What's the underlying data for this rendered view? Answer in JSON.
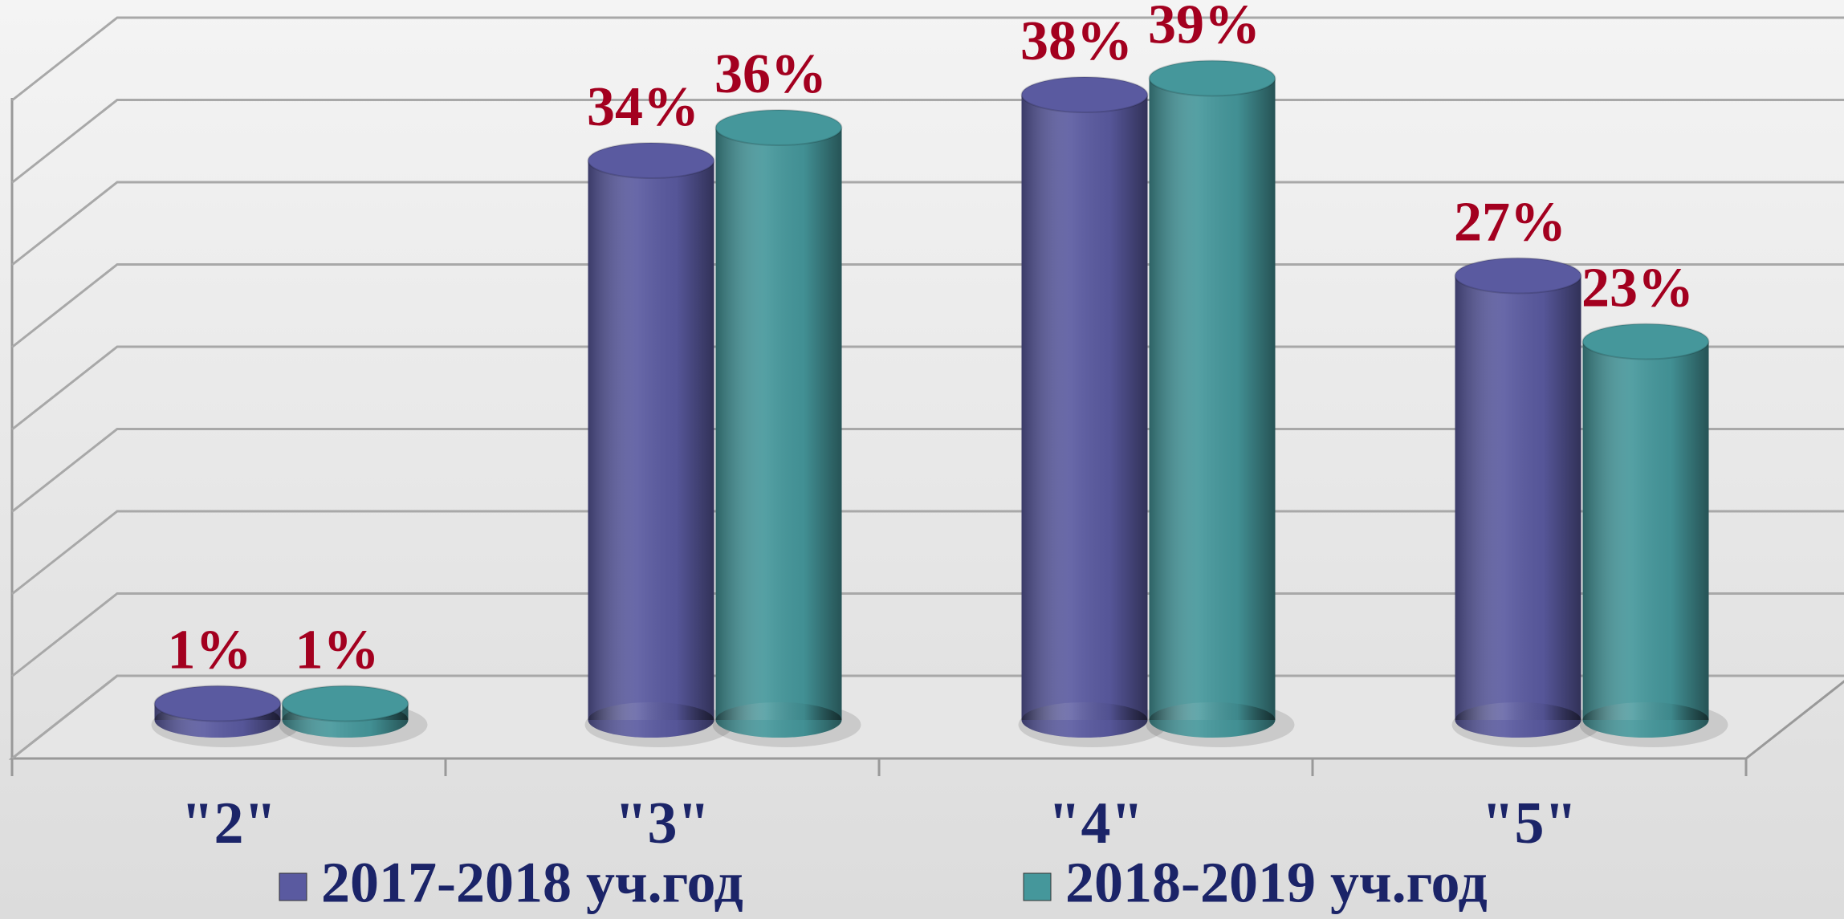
{
  "chart_data": {
    "type": "bar3d",
    "categories": [
      "\"2\"",
      "\"3\"",
      "\"4\"",
      "\"5\""
    ],
    "series": [
      {
        "name": "2017-2018 уч.год",
        "color": "#5a5aa0",
        "values": [
          1,
          34,
          38,
          27
        ],
        "value_labels": [
          "1%",
          "34%",
          "38%",
          "27%"
        ]
      },
      {
        "name": "2018-2019 уч.год",
        "color": "#45979b",
        "values": [
          1,
          36,
          39,
          23
        ],
        "value_labels": [
          "1%",
          "36%",
          "39%",
          "23%"
        ]
      }
    ],
    "ylim": [
      0,
      40
    ],
    "yticks": [
      0,
      5,
      10,
      15,
      20,
      25,
      30,
      35,
      40
    ],
    "grid": true
  }
}
